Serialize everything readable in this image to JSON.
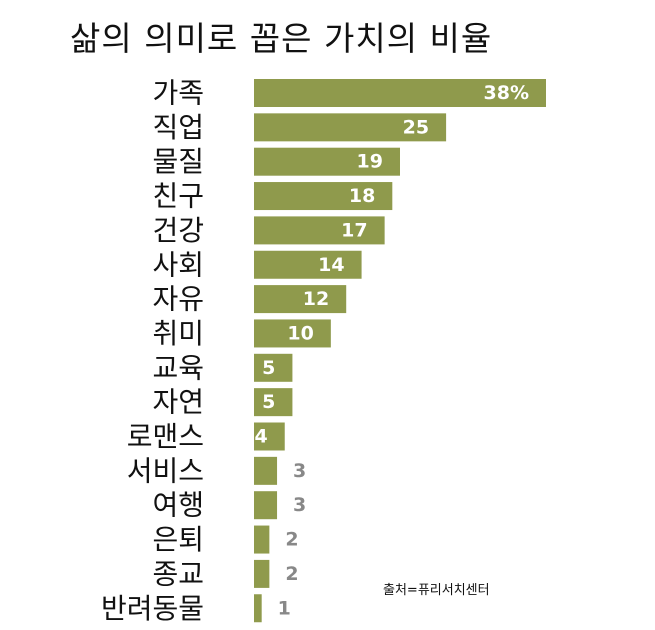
{
  "chart_data": {
    "type": "bar",
    "orientation": "horizontal",
    "title": "삶의 의미로 꼽은 가치의 비율",
    "source": "출처=퓨리서치센터",
    "categories": [
      "가족",
      "직업",
      "물질",
      "친구",
      "건강",
      "사회",
      "자유",
      "취미",
      "교육",
      "자연",
      "로맨스",
      "서비스",
      "여행",
      "은퇴",
      "종교",
      "반려동물"
    ],
    "values": [
      38,
      25,
      19,
      18,
      17,
      14,
      12,
      10,
      5,
      5,
      4,
      3,
      3,
      2,
      2,
      1
    ],
    "value_labels": [
      "38%",
      "25",
      "19",
      "18",
      "17",
      "14",
      "12",
      "10",
      "5",
      "5",
      "4",
      "3",
      "3",
      "2",
      "2",
      "1"
    ],
    "xlim": [
      0,
      38
    ],
    "grid": false,
    "legend": "none",
    "colors": {
      "bar": "#8f9a4c",
      "label_inside": "#ffffff",
      "label_outside": "#888888",
      "text": "#111111"
    }
  }
}
